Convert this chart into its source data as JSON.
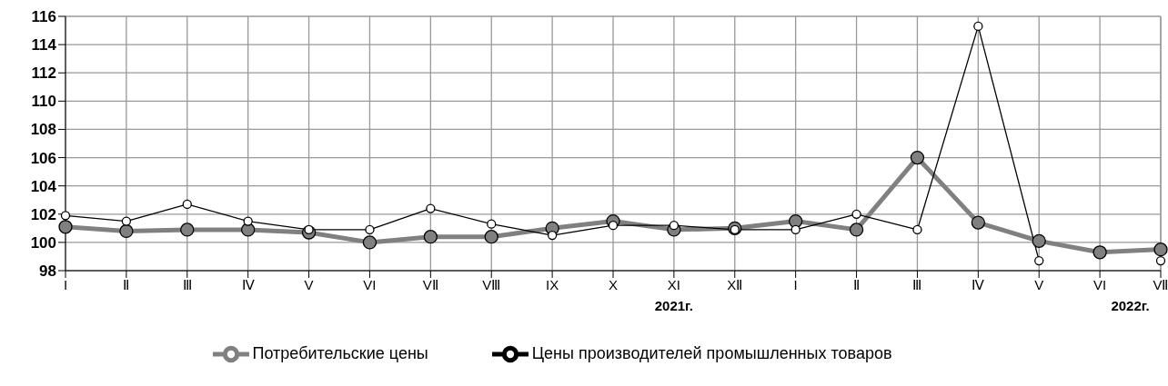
{
  "chart_data": {
    "type": "line",
    "categories": [
      "I",
      "Ⅱ",
      "Ⅲ",
      "Ⅳ",
      "V",
      "VI",
      "VⅡ",
      "VⅢ",
      "IX",
      "X",
      "XI",
      "XⅡ",
      "I",
      "Ⅱ",
      "Ⅲ",
      "Ⅳ",
      "V",
      "VI",
      "VⅡ"
    ],
    "series": [
      {
        "name": "Потребительские цены",
        "color": "#808080",
        "values": [
          101.1,
          100.8,
          100.9,
          100.9,
          100.7,
          100.0,
          100.4,
          100.4,
          101.0,
          101.5,
          100.9,
          101.0,
          101.5,
          100.9,
          106.0,
          101.4,
          100.1,
          99.3,
          99.5
        ]
      },
      {
        "name": "Цены производителей промышленных товаров",
        "color": "#000000",
        "values": [
          101.9,
          101.5,
          102.7,
          101.5,
          100.9,
          100.9,
          102.4,
          101.3,
          100.5,
          101.2,
          101.2,
          100.9,
          100.9,
          102.0,
          100.9,
          115.3,
          98.7,
          null,
          98.7
        ]
      }
    ],
    "ylim": [
      98,
      116
    ],
    "yticks": [
      98,
      100,
      102,
      104,
      106,
      108,
      110,
      112,
      114,
      116
    ],
    "grid": true,
    "legend": "bottom",
    "marker": "circle",
    "annotations": [
      "2021г.",
      "2022г."
    ]
  }
}
